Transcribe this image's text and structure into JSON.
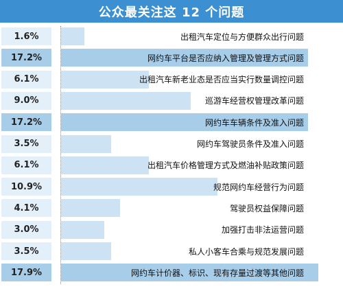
{
  "chart_data": {
    "type": "bar",
    "title": "公众最关注这 12 个问题",
    "categories": [
      "出租汽车定位与方便群众出行问题",
      "网约车平台是否应纳入管理及管理方式问题",
      "出租汽车新老业态是否应当实行数量调控问题",
      "巡游车经营权管理改革问题",
      "网约车车辆条件及准入问题",
      "网约车驾驶员条件及准入问题",
      "出租汽车价格管理方式及燃油补贴政策问题",
      "规范网约车经营行为问题",
      "驾驶员权益保障问题",
      "加强打击非法运营问题",
      "私人小客车合乘与规范发展问题",
      "网约车计价器、标识、现有存量过渡等其他问题"
    ],
    "values": [
      1.6,
      17.2,
      6.1,
      9.0,
      17.2,
      3.5,
      6.1,
      10.9,
      4.1,
      3.0,
      3.5,
      17.9
    ],
    "value_labels": [
      "1.6%",
      "17.2%",
      "6.1%",
      "9.0%",
      "17.2%",
      "3.5%",
      "6.1%",
      "10.9%",
      "4.1%",
      "3.0%",
      "3.5%",
      "17.9%"
    ],
    "xlim": [
      0,
      17.9
    ],
    "colors": {
      "title_bg": "#3c8fd0",
      "bar_light": "#cde3f3",
      "bar_dark": "#a8cde9",
      "pct_bg": "#e3eff9"
    }
  }
}
